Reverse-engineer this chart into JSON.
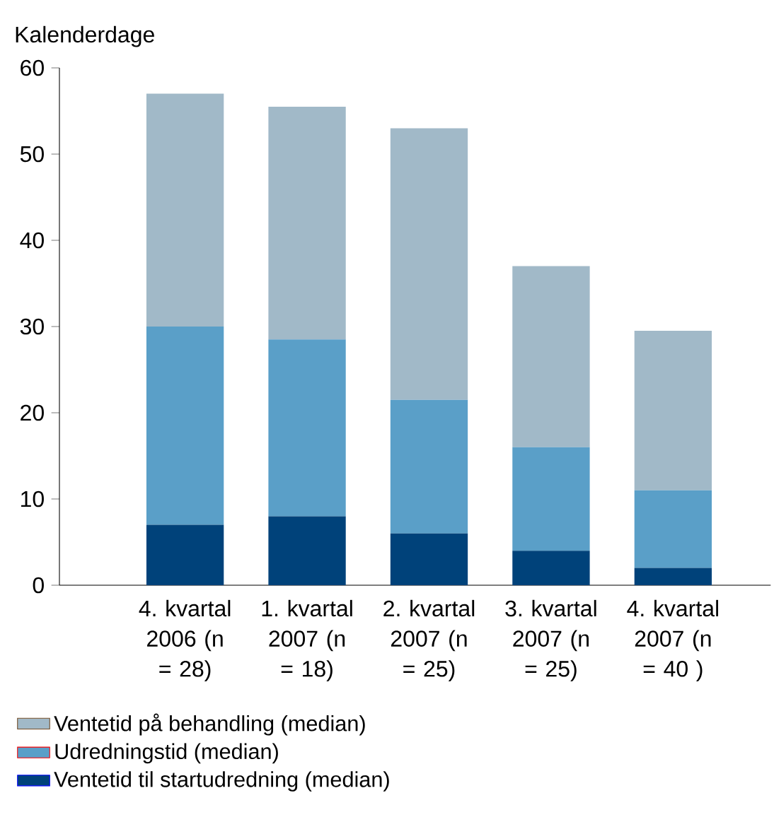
{
  "chart_data": {
    "type": "bar",
    "stacked": true,
    "ylabel": "Kalenderdage",
    "categories": [
      "4. kvartal 2006 (n = 28)",
      "1. kvartal 2007 (n = 18)",
      "2. kvartal 2007 (n = 25)",
      "3. kvartal 2007 (n = 25)",
      "4. kvartal 2007 (n = 40 )"
    ],
    "series": [
      {
        "name": "Ventetid til startudredning (median)",
        "color": "#00427a",
        "values": [
          7,
          8,
          6,
          4,
          2
        ]
      },
      {
        "name": "Udredningstid (median)",
        "color": "#5a9fc8",
        "values": [
          23,
          20.5,
          15.5,
          12,
          9
        ]
      },
      {
        "name": "Ventetid på behandling (median)",
        "color": "#a1b9c8",
        "values": [
          27,
          27,
          31.5,
          21,
          18.5
        ]
      }
    ],
    "ylim": [
      0,
      60
    ],
    "yticks": [
      0,
      10,
      20,
      30,
      40,
      50,
      60
    ],
    "grid": false,
    "legend": "bottom"
  }
}
